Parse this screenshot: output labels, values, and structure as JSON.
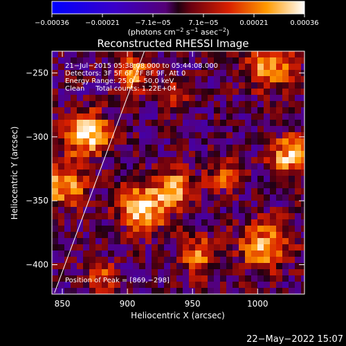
{
  "chart_data": {
    "type": "heatmap",
    "title": "Reconstructed RHESSI Image",
    "xlabel": "Heliocentric X (arcsec)",
    "ylabel": "Heliocentric Y (arcsec)",
    "xlim": [
      842,
      1036
    ],
    "ylim": [
      -423,
      -233
    ],
    "x_ticks": [
      850,
      900,
      950,
      1000
    ],
    "y_ticks": [
      -400,
      -350,
      -300,
      -250
    ],
    "x_tick_labels": [
      "850",
      "900",
      "950",
      "1000"
    ],
    "y_tick_labels": [
      "−400",
      "−350",
      "−300",
      "−250"
    ],
    "colorbar": {
      "min": -0.00036,
      "max": 0.00036,
      "tick_labels": [
        "−0.00036",
        "−0.00021",
        "−7.1e−05",
        "7.1e−05",
        "0.00021",
        "0.00036"
      ],
      "units_label": "(photons cm",
      "units_sup1": "−2",
      "units_mid": " s",
      "units_sup2": "−1",
      "units_end1": " asec",
      "units_sup3": "−2",
      "units_end2": ")"
    },
    "annotations": [
      "21−Jul−2015 05:38:08.000 to 05:44:08.000",
      "Detectors: 3F 5F 6F 7F 8F 9F, Att 0",
      "Energy Range: 25.0 − 50.0 keV",
      "Clean     Total counts: 1.22E+04"
    ],
    "peak_label": "Position of Peak = [869,−298]",
    "peak": [
      869,
      -298
    ],
    "limb_line": {
      "x": [
        844,
        913
      ],
      "y": [
        -422,
        -233
      ]
    },
    "sources": [
      {
        "x": 869,
        "y": -298,
        "sigma": 12,
        "amp": 1.0
      },
      {
        "x": 852,
        "y": -338,
        "sigma": 11,
        "amp": 0.85
      },
      {
        "x": 912,
        "y": -355,
        "sigma": 13,
        "amp": 0.95
      },
      {
        "x": 938,
        "y": -340,
        "sigma": 10,
        "amp": 0.8
      },
      {
        "x": 905,
        "y": -250,
        "sigma": 10,
        "amp": 0.65
      },
      {
        "x": 1010,
        "y": -245,
        "sigma": 12,
        "amp": 0.8
      },
      {
        "x": 1025,
        "y": -315,
        "sigma": 11,
        "amp": 0.85
      },
      {
        "x": 1005,
        "y": -385,
        "sigma": 14,
        "amp": 0.75
      },
      {
        "x": 955,
        "y": -392,
        "sigma": 11,
        "amp": 0.6
      },
      {
        "x": 975,
        "y": -330,
        "sigma": 9,
        "amp": 0.55
      },
      {
        "x": 880,
        "y": -410,
        "sigma": 9,
        "amp": 0.5
      },
      {
        "x": 935,
        "y": -270,
        "sigma": 8,
        "amp": 0.45
      }
    ],
    "grid": false
  },
  "footer": {
    "timestamp": "22−May−2022 15:07"
  }
}
